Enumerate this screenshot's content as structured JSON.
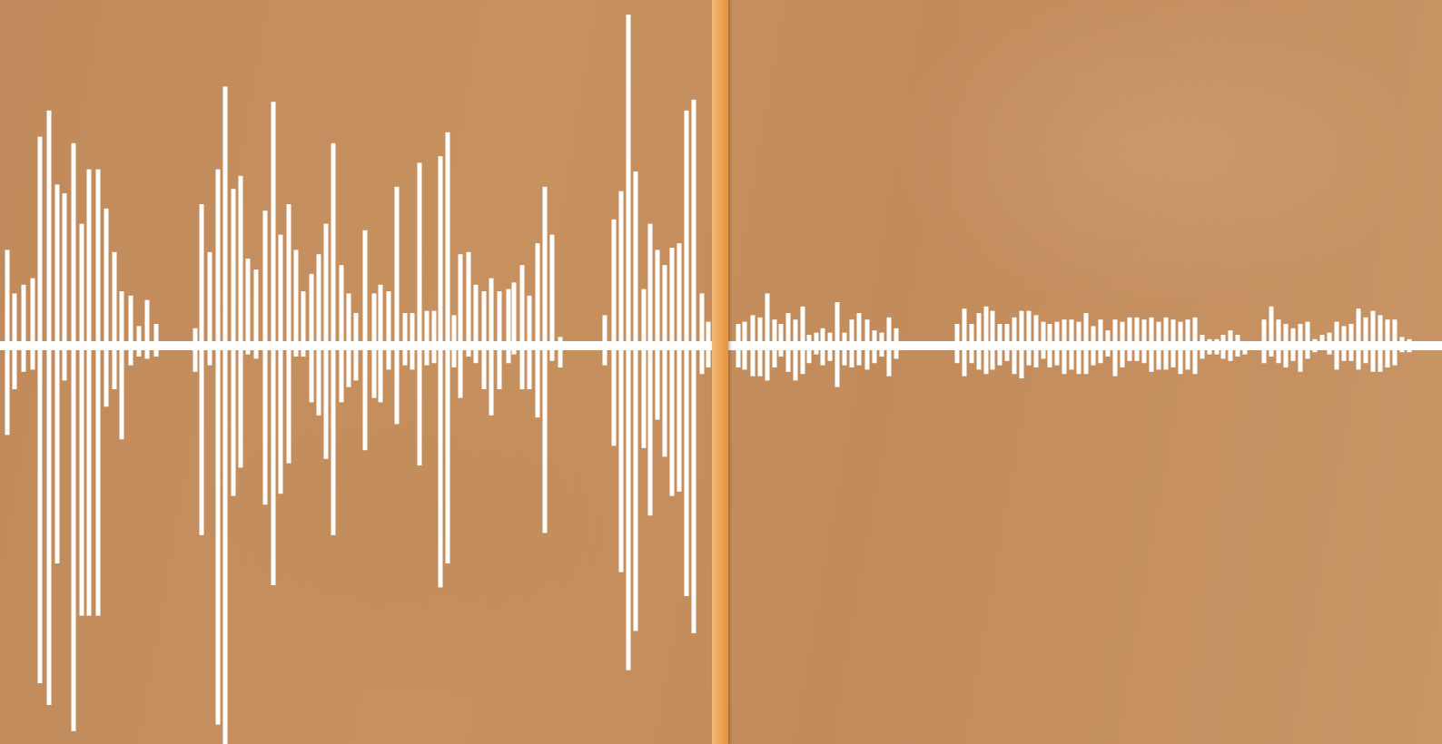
{
  "waveform": {
    "bar_color": "#ffffff",
    "background_color": "#c58c5e",
    "playhead_color": "#eea65a",
    "bars": [
      {
        "x": 8,
        "top": 0.44,
        "bot": 0.41
      },
      {
        "x": 16,
        "top": 0.24,
        "bot": 0.2
      },
      {
        "x": 26,
        "top": 0.28,
        "bot": 0.12
      },
      {
        "x": 36,
        "top": 0.31,
        "bot": 0.11
      },
      {
        "x": 44,
        "top": 0.96,
        "bot": 1.55
      },
      {
        "x": 54,
        "top": 1.08,
        "bot": 1.65
      },
      {
        "x": 63,
        "top": 0.74,
        "bot": 1.0
      },
      {
        "x": 71,
        "top": 0.7,
        "bot": 0.16
      },
      {
        "x": 81,
        "top": 0.93,
        "bot": 1.77
      },
      {
        "x": 90,
        "top": 0.56,
        "bot": 1.24
      },
      {
        "x": 98,
        "top": 0.81,
        "bot": 1.24
      },
      {
        "x": 108,
        "top": 0.81,
        "bot": 1.24
      },
      {
        "x": 117,
        "top": 0.63,
        "bot": 0.28
      },
      {
        "x": 126,
        "top": 0.43,
        "bot": 0.2
      },
      {
        "x": 134,
        "top": 0.25,
        "bot": 0.43
      },
      {
        "x": 144,
        "top": 0.23,
        "bot": 0.09
      },
      {
        "x": 153,
        "top": 0.09,
        "bot": 0.05
      },
      {
        "x": 162,
        "top": 0.21,
        "bot": 0.06
      },
      {
        "x": 172,
        "top": 0.1,
        "bot": 0.05
      },
      {
        "x": 215,
        "top": 0.08,
        "bot": 0.12
      },
      {
        "x": 222,
        "top": 0.65,
        "bot": 0.87
      },
      {
        "x": 231,
        "top": 0.43,
        "bot": 0.09
      },
      {
        "x": 240,
        "top": 0.81,
        "bot": 1.74
      },
      {
        "x": 248,
        "top": 1.19,
        "bot": 1.83
      },
      {
        "x": 257,
        "top": 0.72,
        "bot": 0.69
      },
      {
        "x": 265,
        "top": 0.78,
        "bot": 0.56
      },
      {
        "x": 273,
        "top": 0.4,
        "bot": 0.04
      },
      {
        "x": 282,
        "top": 0.35,
        "bot": 0.06
      },
      {
        "x": 292,
        "top": 0.62,
        "bot": 0.73
      },
      {
        "x": 301,
        "top": 1.12,
        "bot": 1.1
      },
      {
        "x": 309,
        "top": 0.51,
        "bot": 0.68
      },
      {
        "x": 318,
        "top": 0.65,
        "bot": 0.54
      },
      {
        "x": 326,
        "top": 0.44,
        "bot": 0.05
      },
      {
        "x": 334,
        "top": 0.25,
        "bot": 0.05
      },
      {
        "x": 343,
        "top": 0.33,
        "bot": 0.26
      },
      {
        "x": 351,
        "top": 0.42,
        "bot": 0.32
      },
      {
        "x": 359,
        "top": 0.56,
        "bot": 0.52
      },
      {
        "x": 367,
        "top": 0.93,
        "bot": 0.87
      },
      {
        "x": 376,
        "top": 0.37,
        "bot": 0.26
      },
      {
        "x": 384,
        "top": 0.24,
        "bot": 0.19
      },
      {
        "x": 392,
        "top": 0.15,
        "bot": 0.16
      },
      {
        "x": 402,
        "top": 0.53,
        "bot": 0.48
      },
      {
        "x": 412,
        "top": 0.24,
        "bot": 0.24
      },
      {
        "x": 419,
        "top": 0.28,
        "bot": 0.26
      },
      {
        "x": 428,
        "top": 0.25,
        "bot": 0.11
      },
      {
        "x": 437,
        "top": 0.73,
        "bot": 0.36
      },
      {
        "x": 446,
        "top": 0.15,
        "bot": 0.09
      },
      {
        "x": 454,
        "top": 0.15,
        "bot": 0.11
      },
      {
        "x": 462,
        "top": 0.84,
        "bot": 0.55
      },
      {
        "x": 470,
        "top": 0.16,
        "bot": 0.09
      },
      {
        "x": 478,
        "top": 0.16,
        "bot": 0.08
      },
      {
        "x": 485,
        "top": 0.87,
        "bot": 1.11
      },
      {
        "x": 493,
        "top": 0.98,
        "bot": 1.0
      },
      {
        "x": 500,
        "top": 0.14,
        "bot": 0.1
      },
      {
        "x": 507,
        "top": 0.42,
        "bot": 0.24
      },
      {
        "x": 516,
        "top": 0.43,
        "bot": 0.05
      },
      {
        "x": 524,
        "top": 0.28,
        "bot": 0.08
      },
      {
        "x": 533,
        "top": 0.25,
        "bot": 0.2
      },
      {
        "x": 541,
        "top": 0.31,
        "bot": 0.32
      },
      {
        "x": 550,
        "top": 0.25,
        "bot": 0.2
      },
      {
        "x": 560,
        "top": 0.26,
        "bot": 0.08
      },
      {
        "x": 566,
        "top": 0.29,
        "bot": 0.04
      },
      {
        "x": 575,
        "top": 0.37,
        "bot": 0.2
      },
      {
        "x": 583,
        "top": 0.23,
        "bot": 0.2
      },
      {
        "x": 592,
        "top": 0.47,
        "bot": 0.33
      },
      {
        "x": 600,
        "top": 0.73,
        "bot": 0.86
      },
      {
        "x": 608,
        "top": 0.51,
        "bot": 0.07
      },
      {
        "x": 617,
        "top": 0.04,
        "bot": 0.1
      },
      {
        "x": 666,
        "top": 0.14,
        "bot": 0.09
      },
      {
        "x": 676,
        "top": 0.58,
        "bot": 0.46
      },
      {
        "x": 684,
        "top": 0.71,
        "bot": 1.04
      },
      {
        "x": 692,
        "top": 1.52,
        "bot": 1.49
      },
      {
        "x": 700,
        "top": 0.8,
        "bot": 1.31
      },
      {
        "x": 709,
        "top": 0.26,
        "bot": 0.47
      },
      {
        "x": 716,
        "top": 0.56,
        "bot": 0.78
      },
      {
        "x": 724,
        "top": 0.44,
        "bot": 0.34
      },
      {
        "x": 732,
        "top": 0.37,
        "bot": 0.51
      },
      {
        "x": 740,
        "top": 0.45,
        "bot": 0.69
      },
      {
        "x": 748,
        "top": 0.47,
        "bot": 0.67
      },
      {
        "x": 756,
        "top": 1.08,
        "bot": 1.15
      },
      {
        "x": 764,
        "top": 1.13,
        "bot": 1.32
      },
      {
        "x": 773,
        "top": 0.24,
        "bot": 0.13
      },
      {
        "x": 780,
        "top": 0.11,
        "bot": 0.1
      },
      {
        "x": 813,
        "top": 0.1,
        "bot": 0.1
      },
      {
        "x": 820,
        "top": 0.11,
        "bot": 0.11
      },
      {
        "x": 829,
        "top": 0.14,
        "bot": 0.14
      },
      {
        "x": 837,
        "top": 0.13,
        "bot": 0.14
      },
      {
        "x": 845,
        "top": 0.24,
        "bot": 0.16
      },
      {
        "x": 853,
        "top": 0.12,
        "bot": 0.1
      },
      {
        "x": 860,
        "top": 0.1,
        "bot": 0.05
      },
      {
        "x": 868,
        "top": 0.15,
        "bot": 0.12
      },
      {
        "x": 876,
        "top": 0.12,
        "bot": 0.16
      },
      {
        "x": 884,
        "top": 0.18,
        "bot": 0.13
      },
      {
        "x": 891,
        "top": 0.05,
        "bot": 0.08
      },
      {
        "x": 899,
        "top": 0.06,
        "bot": 0.04
      },
      {
        "x": 906,
        "top": 0.08,
        "bot": 0.09
      },
      {
        "x": 914,
        "top": 0.06,
        "bot": 0.07
      },
      {
        "x": 922,
        "top": 0.2,
        "bot": 0.19
      },
      {
        "x": 930,
        "top": 0.06,
        "bot": 0.09
      },
      {
        "x": 938,
        "top": 0.12,
        "bot": 0.1
      },
      {
        "x": 946,
        "top": 0.15,
        "bot": 0.09
      },
      {
        "x": 955,
        "top": 0.12,
        "bot": 0.11
      },
      {
        "x": 963,
        "top": 0.07,
        "bot": 0.08
      },
      {
        "x": 971,
        "top": 0.06,
        "bot": 0.05
      },
      {
        "x": 979,
        "top": 0.13,
        "bot": 0.14
      },
      {
        "x": 987,
        "top": 0.08,
        "bot": 0.06
      },
      {
        "x": 1054,
        "top": 0.1,
        "bot": 0.08
      },
      {
        "x": 1062,
        "top": 0.17,
        "bot": 0.14
      },
      {
        "x": 1070,
        "top": 0.1,
        "bot": 0.08
      },
      {
        "x": 1078,
        "top": 0.15,
        "bot": 0.11
      },
      {
        "x": 1086,
        "top": 0.18,
        "bot": 0.13
      },
      {
        "x": 1093,
        "top": 0.16,
        "bot": 0.11
      },
      {
        "x": 1101,
        "top": 0.1,
        "bot": 0.09
      },
      {
        "x": 1109,
        "top": 0.1,
        "bot": 0.07
      },
      {
        "x": 1117,
        "top": 0.13,
        "bot": 0.13
      },
      {
        "x": 1125,
        "top": 0.16,
        "bot": 0.15
      },
      {
        "x": 1133,
        "top": 0.16,
        "bot": 0.09
      },
      {
        "x": 1141,
        "top": 0.14,
        "bot": 0.1
      },
      {
        "x": 1149,
        "top": 0.11,
        "bot": 0.06
      },
      {
        "x": 1156,
        "top": 0.1,
        "bot": 0.1
      },
      {
        "x": 1164,
        "top": 0.11,
        "bot": 0.09
      },
      {
        "x": 1172,
        "top": 0.12,
        "bot": 0.13
      },
      {
        "x": 1180,
        "top": 0.12,
        "bot": 0.11
      },
      {
        "x": 1188,
        "top": 0.11,
        "bot": 0.13
      },
      {
        "x": 1196,
        "top": 0.15,
        "bot": 0.13
      },
      {
        "x": 1204,
        "top": 0.09,
        "bot": 0.09
      },
      {
        "x": 1212,
        "top": 0.12,
        "bot": 0.08
      },
      {
        "x": 1220,
        "top": 0.07,
        "bot": 0.05
      },
      {
        "x": 1228,
        "top": 0.12,
        "bot": 0.14
      },
      {
        "x": 1236,
        "top": 0.11,
        "bot": 0.1
      },
      {
        "x": 1244,
        "top": 0.13,
        "bot": 0.07
      },
      {
        "x": 1252,
        "top": 0.13,
        "bot": 0.07
      },
      {
        "x": 1260,
        "top": 0.12,
        "bot": 0.08
      },
      {
        "x": 1268,
        "top": 0.13,
        "bot": 0.12
      },
      {
        "x": 1276,
        "top": 0.11,
        "bot": 0.11
      },
      {
        "x": 1284,
        "top": 0.13,
        "bot": 0.11
      },
      {
        "x": 1292,
        "top": 0.12,
        "bot": 0.1
      },
      {
        "x": 1300,
        "top": 0.11,
        "bot": 0.13
      },
      {
        "x": 1308,
        "top": 0.12,
        "bot": 0.11
      },
      {
        "x": 1316,
        "top": 0.13,
        "bot": 0.13
      },
      {
        "x": 1324,
        "top": 0.05,
        "bot": 0.06
      },
      {
        "x": 1332,
        "top": 0.03,
        "bot": 0.04
      },
      {
        "x": 1340,
        "top": 0.03,
        "bot": 0.04
      },
      {
        "x": 1347,
        "top": 0.05,
        "bot": 0.06
      },
      {
        "x": 1355,
        "top": 0.07,
        "bot": 0.07
      },
      {
        "x": 1363,
        "top": 0.05,
        "bot": 0.05
      },
      {
        "x": 1371,
        "top": 0.02,
        "bot": 0.04
      },
      {
        "x": 1392,
        "top": 0.12,
        "bot": 0.08
      },
      {
        "x": 1400,
        "top": 0.18,
        "bot": 0.05
      },
      {
        "x": 1408,
        "top": 0.12,
        "bot": 0.08
      },
      {
        "x": 1416,
        "top": 0.1,
        "bot": 0.1
      },
      {
        "x": 1424,
        "top": 0.08,
        "bot": 0.07
      },
      {
        "x": 1432,
        "top": 0.1,
        "bot": 0.12
      },
      {
        "x": 1440,
        "top": 0.11,
        "bot": 0.06
      },
      {
        "x": 1448,
        "top": 0.03,
        "bot": 0.03
      },
      {
        "x": 1456,
        "top": 0.05,
        "bot": 0.02
      },
      {
        "x": 1464,
        "top": 0.06,
        "bot": 0.04
      },
      {
        "x": 1472,
        "top": 0.11,
        "bot": 0.11
      },
      {
        "x": 1480,
        "top": 0.09,
        "bot": 0.07
      },
      {
        "x": 1488,
        "top": 0.1,
        "bot": 0.07
      },
      {
        "x": 1496,
        "top": 0.17,
        "bot": 0.11
      },
      {
        "x": 1504,
        "top": 0.13,
        "bot": 0.08
      },
      {
        "x": 1512,
        "top": 0.16,
        "bot": 0.12
      },
      {
        "x": 1520,
        "top": 0.14,
        "bot": 0.12
      },
      {
        "x": 1528,
        "top": 0.12,
        "bot": 0.1
      },
      {
        "x": 1536,
        "top": 0.12,
        "bot": 0.09
      },
      {
        "x": 1544,
        "top": 0.04,
        "bot": 0.03
      },
      {
        "x": 1552,
        "top": 0.03,
        "bot": 0.03
      },
      {
        "x": 1560,
        "top": 0.02,
        "bot": 0.02
      },
      {
        "x": 1568,
        "top": 0.02,
        "bot": 0.02
      }
    ]
  },
  "playhead": {
    "state": "paused"
  }
}
